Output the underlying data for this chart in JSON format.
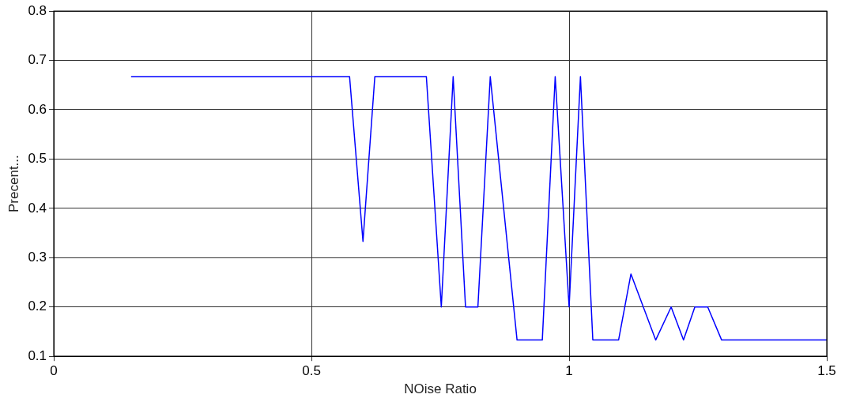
{
  "chart_data": {
    "type": "line",
    "xlabel": "NOise Ratio",
    "ylabel": "Precent...",
    "x": [
      0.15,
      0.574,
      0.6,
      0.623,
      0.723,
      0.752,
      0.775,
      0.799,
      0.823,
      0.847,
      0.899,
      0.948,
      0.973,
      1.0,
      1.022,
      1.046,
      1.096,
      1.12,
      1.168,
      1.198,
      1.222,
      1.244,
      1.269,
      1.296,
      1.5
    ],
    "series": [
      {
        "color": "#0000ff",
        "values": [
          0.667,
          0.667,
          0.333,
          0.667,
          0.667,
          0.2,
          0.667,
          0.2,
          0.2,
          0.667,
          0.133,
          0.133,
          0.667,
          0.2,
          0.667,
          0.133,
          0.133,
          0.267,
          0.133,
          0.2,
          0.133,
          0.2,
          0.2,
          0.133,
          0.133
        ]
      }
    ],
    "xlim": [
      0,
      1.5
    ],
    "xticks": [
      0,
      0.5,
      1,
      1.5
    ],
    "ylim": [
      0.1,
      0.8
    ],
    "yticks": [
      0.1,
      0.2,
      0.3,
      0.4,
      0.5,
      0.6,
      0.7,
      0.8
    ],
    "grid": true,
    "legend": false,
    "marker": "none",
    "line_style": "solid"
  }
}
